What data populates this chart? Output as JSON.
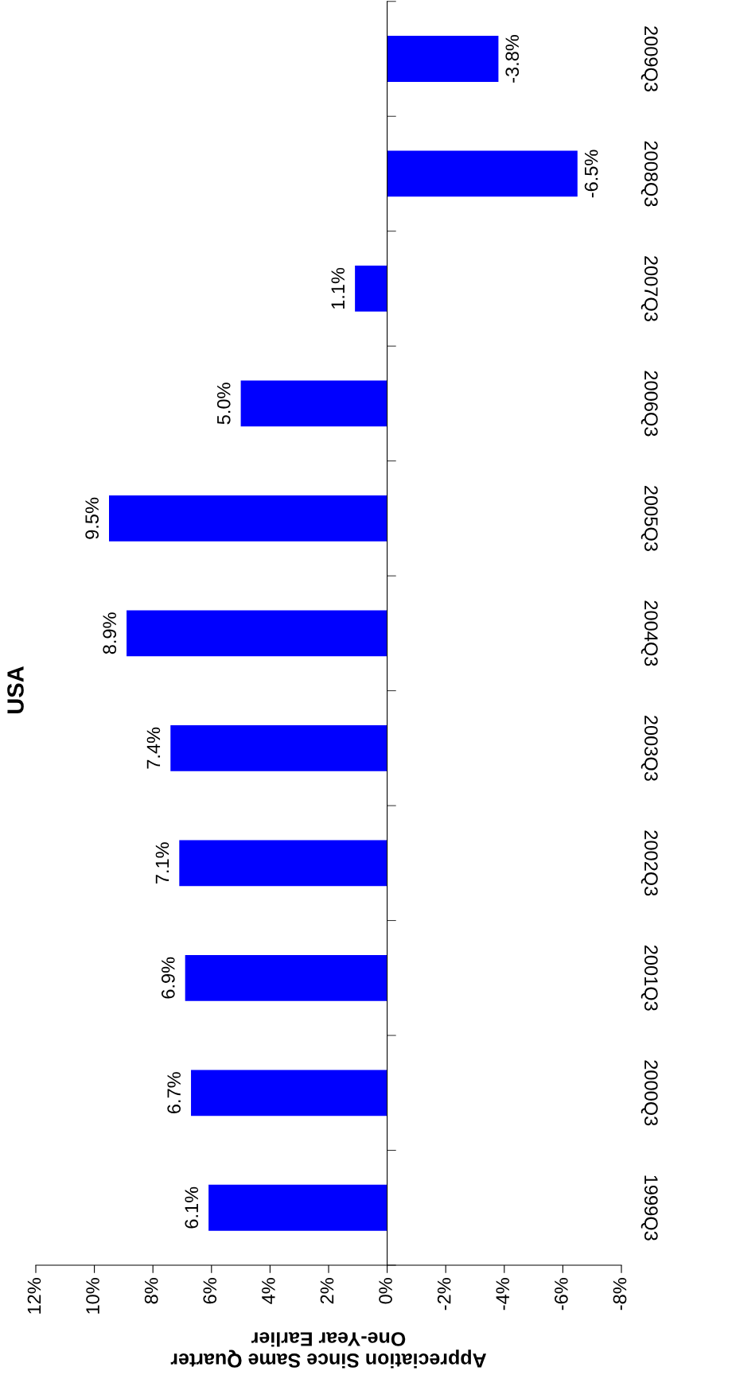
{
  "chart_data": {
    "type": "bar",
    "orientation": "horizontal",
    "title": "USA",
    "xlabel": "Appreciation Since Same Quarter\nOne-Year Earlier",
    "categories": [
      "2009Q3",
      "2008Q3",
      "2007Q3",
      "2006Q3",
      "2005Q3",
      "2004Q3",
      "2003Q3",
      "2002Q3",
      "2001Q3",
      "2000Q3",
      "1999Q3"
    ],
    "values": [
      -3.8,
      -6.5,
      1.1,
      5.0,
      9.5,
      8.9,
      7.4,
      7.1,
      6.9,
      6.7,
      6.1
    ],
    "value_labels": [
      "-3.8%",
      "-6.5%",
      "1.1%",
      "5.0%",
      "9.5%",
      "8.9%",
      "7.4%",
      "7.1%",
      "6.9%",
      "6.7%",
      "6.1%"
    ],
    "color": "#0000ff",
    "xlim": [
      12,
      -8
    ],
    "xticks": [
      {
        "value": 12,
        "label": "12%"
      },
      {
        "value": 10,
        "label": "10%"
      },
      {
        "value": 8,
        "label": "8%"
      },
      {
        "value": 6,
        "label": "6%"
      },
      {
        "value": 4,
        "label": "4%"
      },
      {
        "value": 2,
        "label": "2%"
      },
      {
        "value": 0,
        "label": "0%"
      },
      {
        "value": -2,
        "label": "-2%"
      },
      {
        "value": -4,
        "label": "-4%"
      },
      {
        "value": -6,
        "label": "-6%"
      },
      {
        "value": -8,
        "label": "-8%"
      }
    ],
    "legend": false
  }
}
